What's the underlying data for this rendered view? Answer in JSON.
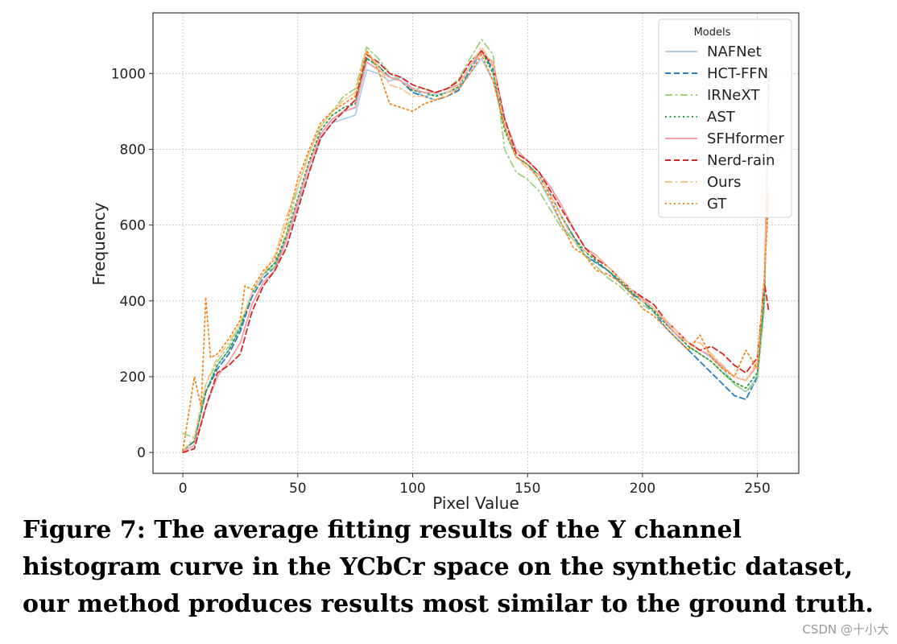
{
  "chart_data": {
    "type": "line",
    "xlabel": "Pixel Value",
    "ylabel": "Frequency",
    "xlim": [
      -13,
      268
    ],
    "ylim": [
      -55,
      1160
    ],
    "xticks": [
      0,
      50,
      100,
      150,
      200,
      250
    ],
    "yticks": [
      0,
      200,
      400,
      600,
      800,
      1000
    ],
    "grid": true,
    "legend": {
      "title": "Models",
      "placement": "top-right"
    },
    "series": [
      {
        "name": "NAFNet",
        "color": "#aecde6",
        "style": "solid",
        "x": [
          0,
          5,
          10,
          15,
          20,
          25,
          30,
          35,
          40,
          45,
          50,
          55,
          60,
          65,
          70,
          75,
          80,
          85,
          90,
          95,
          100,
          105,
          110,
          115,
          120,
          125,
          130,
          135,
          140,
          145,
          150,
          155,
          160,
          165,
          170,
          175,
          180,
          185,
          190,
          195,
          200,
          205,
          210,
          215,
          220,
          225,
          230,
          235,
          240,
          245,
          250,
          253,
          255
        ],
        "y": [
          5,
          30,
          160,
          230,
          270,
          330,
          420,
          470,
          500,
          560,
          650,
          740,
          830,
          870,
          880,
          890,
          1010,
          1000,
          980,
          990,
          960,
          940,
          945,
          950,
          960,
          1000,
          1040,
          980,
          860,
          780,
          760,
          720,
          660,
          600,
          560,
          520,
          500,
          480,
          450,
          420,
          400,
          380,
          350,
          320,
          290,
          270,
          250,
          220,
          180,
          160,
          200,
          400,
          960
        ]
      },
      {
        "name": "HCT-FFN",
        "color": "#2a7fbf",
        "style": "dashed",
        "x": [
          0,
          5,
          10,
          15,
          20,
          25,
          30,
          35,
          40,
          45,
          50,
          55,
          60,
          65,
          70,
          75,
          80,
          85,
          90,
          95,
          100,
          105,
          110,
          115,
          120,
          125,
          130,
          135,
          140,
          145,
          150,
          155,
          160,
          165,
          170,
          175,
          180,
          185,
          190,
          195,
          200,
          205,
          210,
          215,
          220,
          225,
          230,
          235,
          240,
          245,
          250,
          253,
          255
        ],
        "y": [
          5,
          30,
          160,
          220,
          260,
          320,
          410,
          460,
          490,
          560,
          660,
          760,
          840,
          880,
          900,
          910,
          1040,
          1020,
          990,
          980,
          950,
          940,
          930,
          940,
          955,
          1010,
          1060,
          1010,
          860,
          780,
          760,
          730,
          680,
          620,
          570,
          520,
          500,
          480,
          450,
          420,
          400,
          370,
          330,
          300,
          270,
          240,
          210,
          180,
          150,
          140,
          200,
          400,
          1010
        ]
      },
      {
        "name": "IRNeXT",
        "color": "#9fd17e",
        "style": "dashdot",
        "x": [
          0,
          5,
          10,
          15,
          20,
          25,
          30,
          35,
          40,
          45,
          50,
          55,
          60,
          65,
          70,
          75,
          80,
          85,
          90,
          95,
          100,
          105,
          110,
          115,
          120,
          125,
          130,
          135,
          140,
          145,
          150,
          155,
          160,
          165,
          170,
          175,
          180,
          185,
          190,
          195,
          200,
          205,
          210,
          215,
          220,
          225,
          230,
          235,
          240,
          245,
          250,
          253,
          255
        ],
        "y": [
          50,
          40,
          180,
          240,
          280,
          340,
          420,
          470,
          490,
          580,
          700,
          790,
          860,
          900,
          940,
          960,
          1070,
          1040,
          1000,
          980,
          960,
          960,
          950,
          960,
          985,
          1040,
          1090,
          1050,
          800,
          740,
          720,
          690,
          640,
          590,
          560,
          520,
          490,
          460,
          440,
          410,
          390,
          370,
          340,
          310,
          280,
          260,
          240,
          210,
          180,
          160,
          190,
          380,
          900
        ]
      },
      {
        "name": "AST",
        "color": "#2e9a3e",
        "style": "dotted",
        "x": [
          0,
          5,
          10,
          15,
          20,
          25,
          30,
          35,
          40,
          45,
          50,
          55,
          60,
          65,
          70,
          75,
          80,
          85,
          90,
          95,
          100,
          105,
          110,
          115,
          120,
          125,
          130,
          135,
          140,
          145,
          150,
          155,
          160,
          165,
          170,
          175,
          180,
          185,
          190,
          195,
          200,
          205,
          210,
          215,
          220,
          225,
          230,
          235,
          240,
          245,
          250,
          253,
          255
        ],
        "y": [
          5,
          30,
          160,
          230,
          270,
          330,
          420,
          470,
          500,
          570,
          670,
          770,
          850,
          890,
          910,
          920,
          1040,
          1020,
          990,
          980,
          955,
          950,
          940,
          950,
          965,
          1020,
          1060,
          1000,
          850,
          780,
          760,
          730,
          680,
          620,
          570,
          530,
          505,
          480,
          455,
          425,
          400,
          375,
          340,
          310,
          280,
          260,
          240,
          210,
          185,
          170,
          210,
          410,
          900
        ]
      },
      {
        "name": "SFHformer",
        "color": "#f4a0a6",
        "style": "solid",
        "x": [
          0,
          5,
          10,
          15,
          20,
          25,
          30,
          35,
          40,
          45,
          50,
          55,
          60,
          65,
          70,
          75,
          80,
          85,
          90,
          95,
          100,
          105,
          110,
          115,
          120,
          125,
          130,
          135,
          140,
          145,
          150,
          155,
          160,
          165,
          170,
          175,
          180,
          185,
          190,
          195,
          200,
          205,
          210,
          215,
          220,
          225,
          230,
          235,
          240,
          245,
          250,
          253,
          255
        ],
        "y": [
          0,
          20,
          120,
          200,
          240,
          290,
          390,
          450,
          480,
          560,
          660,
          760,
          840,
          880,
          900,
          910,
          1030,
          1010,
          990,
          980,
          960,
          950,
          950,
          960,
          970,
          1020,
          1055,
          1030,
          880,
          800,
          770,
          740,
          700,
          650,
          590,
          540,
          520,
          490,
          460,
          430,
          405,
          380,
          345,
          310,
          290,
          270,
          255,
          225,
          200,
          190,
          230,
          450,
          950
        ]
      },
      {
        "name": "Nerd-rain",
        "color": "#d62728",
        "style": "dashed",
        "x": [
          0,
          5,
          10,
          15,
          20,
          25,
          30,
          35,
          40,
          45,
          50,
          55,
          60,
          65,
          70,
          75,
          80,
          85,
          90,
          95,
          100,
          105,
          110,
          115,
          120,
          125,
          130,
          135,
          140,
          145,
          150,
          155,
          160,
          165,
          170,
          175,
          180,
          185,
          190,
          195,
          200,
          205,
          210,
          215,
          220,
          225,
          230,
          235,
          240,
          245,
          250,
          253,
          255
        ],
        "y": [
          0,
          10,
          120,
          210,
          230,
          260,
          370,
          440,
          480,
          540,
          640,
          740,
          830,
          870,
          900,
          930,
          1050,
          1030,
          1000,
          990,
          970,
          960,
          950,
          960,
          980,
          1030,
          1060,
          1020,
          880,
          790,
          770,
          740,
          690,
          640,
          590,
          540,
          510,
          490,
          460,
          430,
          410,
          390,
          350,
          320,
          290,
          270,
          280,
          260,
          230,
          210,
          250,
          450,
          370
        ]
      },
      {
        "name": "Ours",
        "color": "#f9c688",
        "style": "dashdot",
        "x": [
          0,
          5,
          10,
          15,
          20,
          25,
          30,
          35,
          40,
          45,
          50,
          55,
          60,
          65,
          70,
          75,
          80,
          85,
          90,
          95,
          100,
          105,
          110,
          115,
          120,
          125,
          130,
          135,
          140,
          145,
          150,
          155,
          160,
          165,
          170,
          175,
          180,
          185,
          190,
          195,
          200,
          205,
          210,
          215,
          220,
          225,
          230,
          235,
          240,
          245,
          250,
          253,
          255
        ],
        "y": [
          5,
          40,
          180,
          250,
          290,
          340,
          420,
          470,
          520,
          620,
          700,
          790,
          860,
          900,
          930,
          950,
          1060,
          1020,
          970,
          960,
          940,
          940,
          930,
          950,
          970,
          1020,
          1070,
          1020,
          860,
          780,
          750,
          730,
          680,
          620,
          560,
          530,
          520,
          490,
          460,
          430,
          400,
          380,
          350,
          320,
          290,
          290,
          260,
          230,
          200,
          190,
          240,
          460,
          700
        ]
      },
      {
        "name": "GT",
        "color": "#f08a24",
        "style": "dotted",
        "x": [
          0,
          5,
          8,
          10,
          12,
          15,
          20,
          25,
          27,
          30,
          35,
          40,
          45,
          50,
          55,
          60,
          65,
          70,
          75,
          80,
          85,
          90,
          95,
          100,
          105,
          110,
          115,
          120,
          125,
          130,
          135,
          140,
          145,
          150,
          155,
          160,
          165,
          170,
          175,
          180,
          185,
          190,
          195,
          200,
          205,
          210,
          215,
          220,
          225,
          230,
          235,
          240,
          245,
          250,
          253,
          255
        ],
        "y": [
          5,
          200,
          120,
          410,
          250,
          260,
          300,
          350,
          440,
          430,
          480,
          510,
          600,
          720,
          800,
          870,
          900,
          920,
          940,
          1060,
          1010,
          920,
          910,
          900,
          920,
          930,
          940,
          960,
          1000,
          1050,
          980,
          860,
          780,
          760,
          720,
          670,
          600,
          540,
          520,
          480,
          470,
          450,
          420,
          380,
          360,
          330,
          300,
          270,
          310,
          250,
          220,
          200,
          270,
          220,
          460,
          680
        ]
      }
    ]
  },
  "caption": {
    "text": "Figure 7: The average fitting results of the Y channel histogram curve in the YCbCr space on the synthetic dataset, our method produces results most similar to the ground truth."
  },
  "watermark": {
    "text": "CSDN @十小大"
  }
}
